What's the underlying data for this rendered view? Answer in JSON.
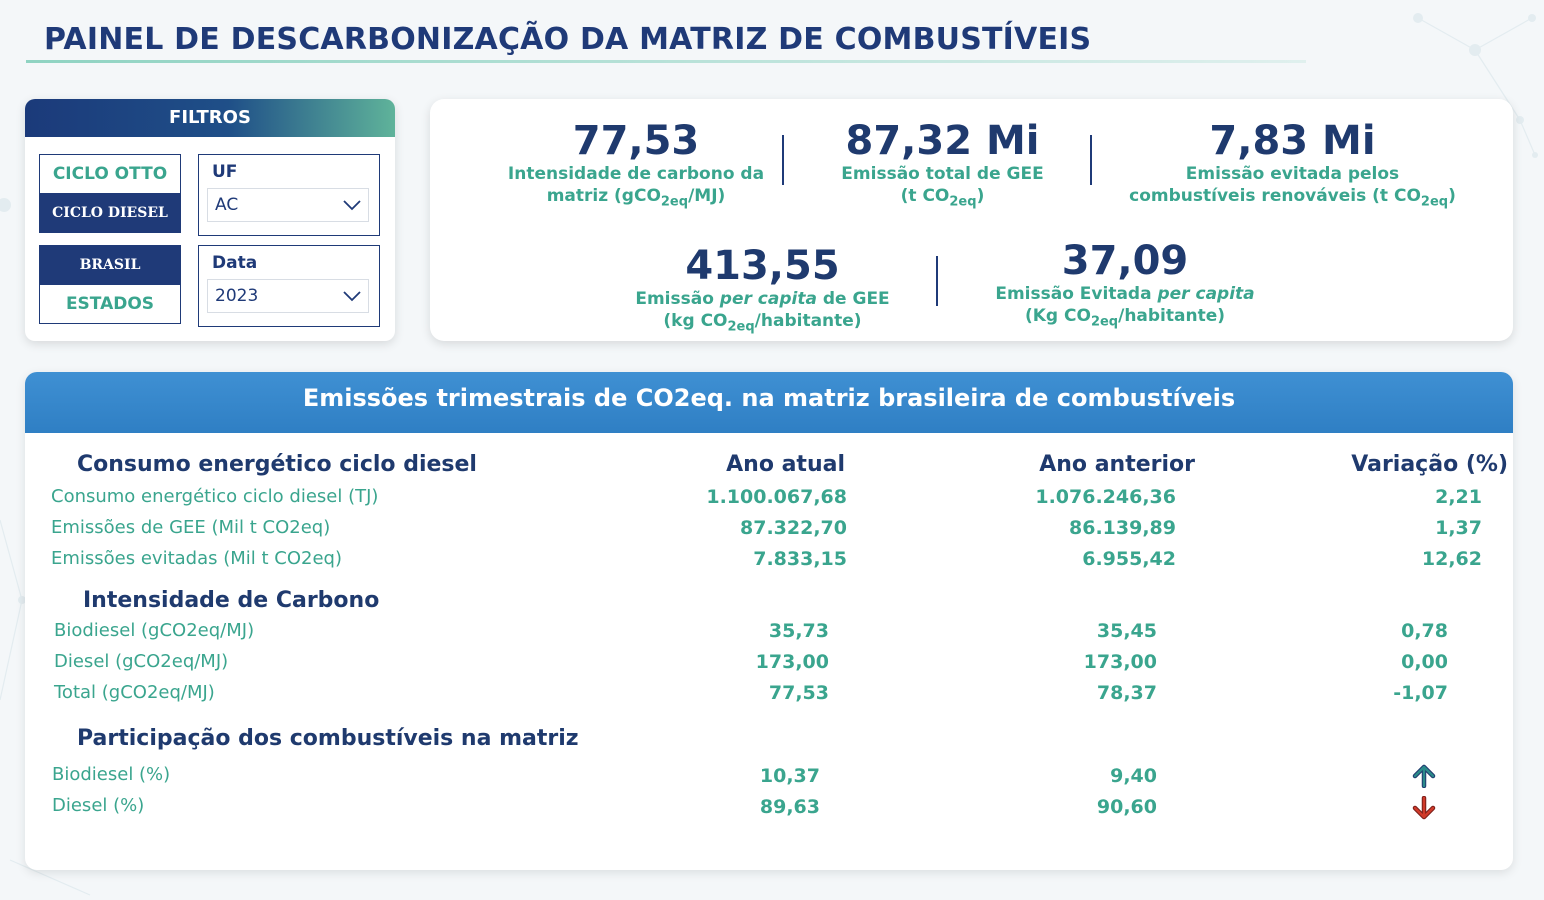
{
  "page": {
    "title": "PAINEL DE DESCARBONIZAÇÃO DA MATRIZ DE COMBUSTÍVEIS"
  },
  "filters": {
    "header": "FILTROS",
    "ciclo": {
      "otto": "CICLO OTTO",
      "diesel": "CICLO DIESEL",
      "selected": "CICLO DIESEL"
    },
    "area": {
      "brasil": "BRASIL",
      "estados": "ESTADOS",
      "selected": "BRASIL"
    },
    "uf": {
      "label": "UF",
      "value": "AC"
    },
    "data": {
      "label": "Data",
      "value": "2023"
    }
  },
  "kpis": {
    "intensidade": {
      "value": "77,53",
      "label_a": "Intensidade de carbono da",
      "label_b": "matriz (gCO",
      "label_sub": "2eq",
      "label_c": "/MJ)"
    },
    "emissao_total": {
      "value": "87,32 Mi",
      "label_a": "Emissão total de GEE",
      "label_b": "(t CO",
      "label_sub": "2eq",
      "label_c": ")"
    },
    "emissao_evitada": {
      "value": "7,83 Mi",
      "label_a": "Emissão evitada pelos",
      "label_b": "combustíveis renováveis (t CO",
      "label_sub": "2eq",
      "label_c": ")"
    },
    "per_capita": {
      "value": "413,55",
      "label_pre": "Emissão ",
      "label_italic": "per capita",
      "label_post": " de GEE",
      "label_b": "(kg CO",
      "label_sub": "2eq",
      "label_c": "/habitante)"
    },
    "evitada_per_capita": {
      "value": "37,09",
      "label_pre": "Emissão Evitada ",
      "label_italic": "per capita",
      "label_b": "(Kg CO",
      "label_sub": "2eq",
      "label_c": "/habitante)"
    }
  },
  "panel": {
    "title": "Emissões trimestrais de CO2eq. na matriz brasileira de combustíveis",
    "col_headers": {
      "atual": "Ano atual",
      "anterior": "Ano anterior",
      "variacao": "Variação (%)"
    },
    "sections": {
      "consumo": {
        "title": "Consumo energético ciclo diesel",
        "rows": [
          {
            "label": "Consumo energético ciclo diesel (TJ)",
            "atual": "1.100.067,68",
            "anterior": "1.076.246,36",
            "variacao": "2,21"
          },
          {
            "label": "Emissões de GEE (Mil t CO2eq)",
            "atual": "87.322,70",
            "anterior": "86.139,89",
            "variacao": "1,37"
          },
          {
            "label": "Emissões evitadas (Mil t CO2eq)",
            "atual": "7.833,15",
            "anterior": "6.955,42",
            "variacao": "12,62"
          }
        ]
      },
      "intensidade": {
        "title": "Intensidade de Carbono",
        "rows": [
          {
            "label": "Biodiesel (gCO2eq/MJ)",
            "atual": "35,73",
            "anterior": "35,45",
            "variacao": "0,78"
          },
          {
            "label": "Diesel (gCO2eq/MJ)",
            "atual": "173,00",
            "anterior": "173,00",
            "variacao": "0,00"
          },
          {
            "label": "Total (gCO2eq/MJ)",
            "atual": "77,53",
            "anterior": "78,37",
            "variacao": "-1,07"
          }
        ]
      },
      "participacao": {
        "title": "Participação dos combustíveis na matriz",
        "rows": [
          {
            "label": "Biodiesel (%)",
            "atual": "10,37",
            "anterior": "9,40",
            "trend": "up",
            "trend_color": "#2a8a8a"
          },
          {
            "label": "Diesel (%)",
            "atual": "89,63",
            "anterior": "90,60",
            "trend": "down",
            "trend_color": "#d03a2a"
          }
        ]
      }
    }
  },
  "colors": {
    "navy": "#1f3a6e",
    "teal": "#3aa58e",
    "blue_header": "#3489cb"
  }
}
